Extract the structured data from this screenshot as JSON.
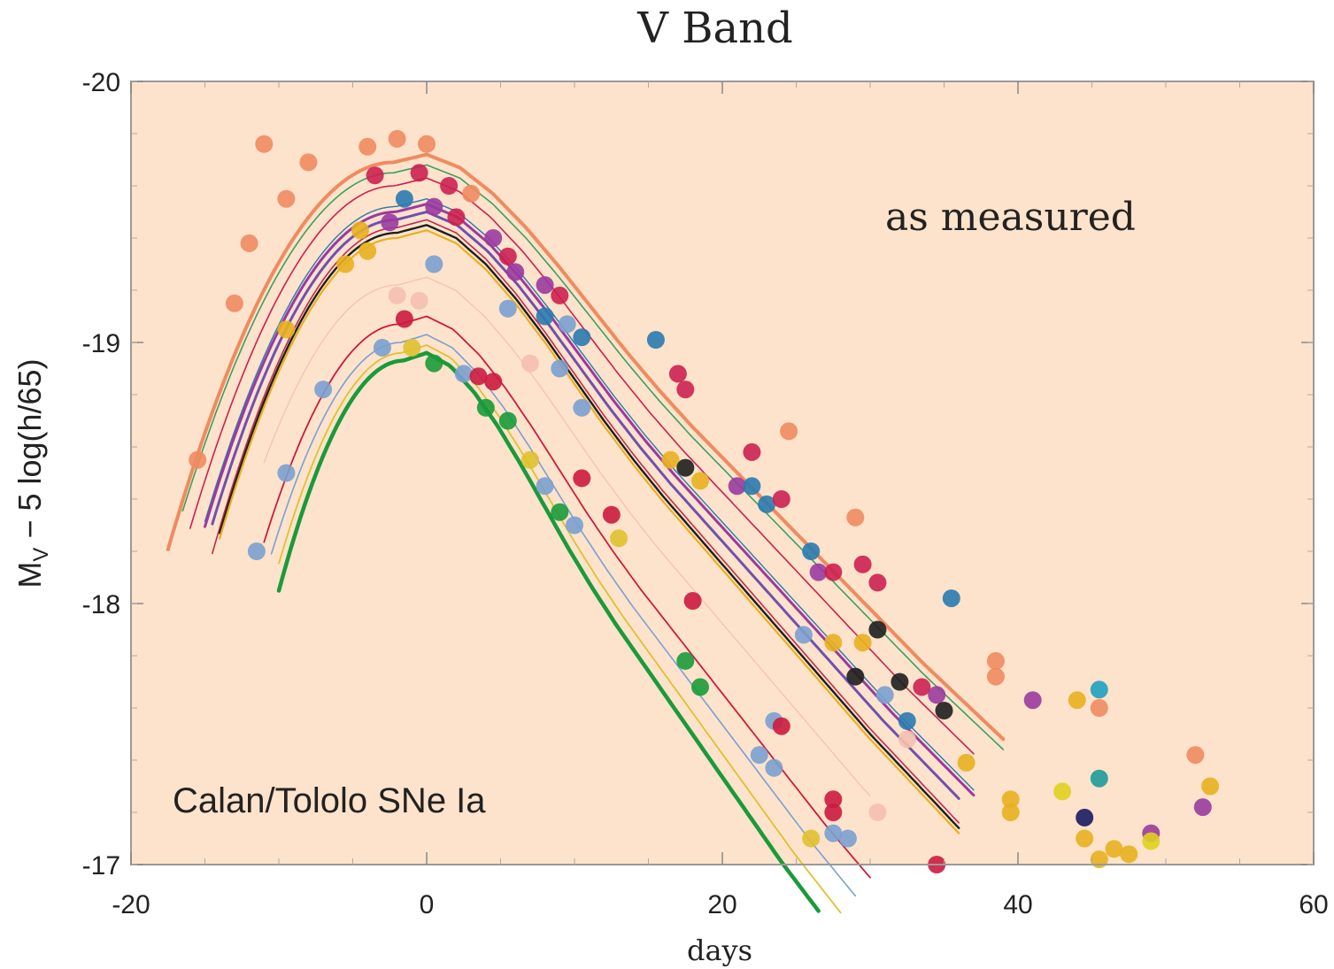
{
  "chart_data": {
    "type": "scatter",
    "title": "V Band",
    "xlabel": "days",
    "ylabel_main": "M",
    "ylabel_sub": "V",
    "ylabel_rest": " − 5 log(h/65)",
    "annotations": {
      "top_right": "as measured",
      "bottom_left": "Calan/Tololo SNe Ia"
    },
    "xlim": [
      -20,
      60
    ],
    "ylim": [
      -17,
      -20
    ],
    "y_inverted": true,
    "x_ticks": [
      -20,
      0,
      20,
      40,
      60
    ],
    "x_tick_labels": [
      "-20",
      "0",
      "20",
      "40",
      "60"
    ],
    "y_ticks": [
      -20,
      -19,
      -18,
      -17
    ],
    "y_tick_labels": [
      "-20",
      "-19",
      "-18",
      "-17"
    ],
    "grid": false,
    "legend": "none",
    "colors": {
      "plot_background": "#fde3cb",
      "frame": "#999999"
    },
    "curve_shape": {
      "x": [
        -2,
        0,
        2,
        4,
        6,
        8,
        10,
        12,
        14,
        16,
        18,
        20,
        22,
        24,
        26,
        28,
        30,
        32,
        34,
        36,
        38,
        40
      ],
      "dm": [
        0.03,
        0.0,
        0.05,
        0.15,
        0.28,
        0.43,
        0.59,
        0.75,
        0.9,
        1.04,
        1.17,
        1.3,
        1.43,
        1.56,
        1.69,
        1.82,
        1.95,
        2.07,
        2.19,
        2.31,
        2.42,
        2.53
      ]
    },
    "series": [
      {
        "peak": -19.72,
        "stretch": 1.12,
        "start": -17.5,
        "end": 39,
        "color": "#f08a60",
        "width": 4
      },
      {
        "peak": -19.68,
        "stretch": 1.12,
        "start": -16.5,
        "end": 39,
        "color": "#3aa060",
        "width": 1.6
      },
      {
        "peak": -19.63,
        "stretch": 1.08,
        "start": -16,
        "end": 37,
        "color": "#cc2050",
        "width": 1.6
      },
      {
        "peak": -19.55,
        "stretch": 1.05,
        "start": -15,
        "end": 37,
        "color": "#2a7ab0",
        "width": 1.4
      },
      {
        "peak": -19.53,
        "stretch": 1.05,
        "start": -15,
        "end": 37,
        "color": "#9a3aa0",
        "width": 3
      },
      {
        "peak": -19.5,
        "stretch": 1.03,
        "start": -14.5,
        "end": 36,
        "color": "#7050b0",
        "width": 3
      },
      {
        "peak": -19.47,
        "stretch": 1.0,
        "start": -14.5,
        "end": 36,
        "color": "#c02a50",
        "width": 1.6
      },
      {
        "peak": -19.45,
        "stretch": 1.0,
        "start": -14,
        "end": 36,
        "color": "#1e1e1e",
        "width": 2.4
      },
      {
        "peak": -19.43,
        "stretch": 1.0,
        "start": -14,
        "end": 36,
        "color": "#e8b020",
        "width": 2.2
      },
      {
        "peak": -19.25,
        "stretch": 0.98,
        "start": -11,
        "end": 30,
        "color": "#f5bfb0",
        "width": 1.2
      },
      {
        "peak": -19.1,
        "stretch": 0.9,
        "start": -11,
        "end": 30,
        "color": "#cc1a40",
        "width": 1.8
      },
      {
        "peak": -19.03,
        "stretch": 0.87,
        "start": -10.5,
        "end": 29,
        "color": "#7aa0d0",
        "width": 1.6
      },
      {
        "peak": -18.99,
        "stretch": 0.83,
        "start": -10,
        "end": 28,
        "color": "#e0c030",
        "width": 1.8
      },
      {
        "peak": -18.96,
        "stretch": 0.8,
        "start": -10,
        "end": 26.5,
        "color": "#1a9a3a",
        "width": 4.5
      }
    ],
    "points": [
      {
        "x": -11,
        "y": -19.76,
        "color": "#f08a60"
      },
      {
        "x": -8,
        "y": -19.69,
        "color": "#f08a60"
      },
      {
        "x": -4,
        "y": -19.75,
        "color": "#f08a60"
      },
      {
        "x": -2,
        "y": -19.78,
        "color": "#f08a60"
      },
      {
        "x": 0,
        "y": -19.76,
        "color": "#f08a60"
      },
      {
        "x": -3.5,
        "y": -19.64,
        "color": "#cc2050"
      },
      {
        "x": -0.5,
        "y": -19.65,
        "color": "#cc2050"
      },
      {
        "x": 1.5,
        "y": -19.6,
        "color": "#cc2050"
      },
      {
        "x": 3,
        "y": -19.57,
        "color": "#f08a60"
      },
      {
        "x": -1.5,
        "y": -19.55,
        "color": "#2a7ab0"
      },
      {
        "x": 0.5,
        "y": -19.52,
        "color": "#9a3aa0"
      },
      {
        "x": 2,
        "y": -19.48,
        "color": "#cc2050"
      },
      {
        "x": -4.5,
        "y": -19.43,
        "color": "#e8b020"
      },
      {
        "x": -2.5,
        "y": -19.46,
        "color": "#9a3aa0"
      },
      {
        "x": 4.5,
        "y": -19.4,
        "color": "#9a3aa0"
      },
      {
        "x": 5.5,
        "y": -19.33,
        "color": "#cc2050"
      },
      {
        "x": -5.5,
        "y": -19.3,
        "color": "#e8b020"
      },
      {
        "x": -4,
        "y": -19.35,
        "color": "#e8b020"
      },
      {
        "x": 0.5,
        "y": -19.3,
        "color": "#7aa0d0"
      },
      {
        "x": 6,
        "y": -19.27,
        "color": "#9a3aa0"
      },
      {
        "x": 8,
        "y": -19.22,
        "color": "#9a3aa0"
      },
      {
        "x": 9,
        "y": -19.18,
        "color": "#cc2050"
      },
      {
        "x": -2,
        "y": -19.18,
        "color": "#f5bfb0"
      },
      {
        "x": -0.5,
        "y": -19.16,
        "color": "#f5bfb0"
      },
      {
        "x": 5.5,
        "y": -19.13,
        "color": "#7aa0d0"
      },
      {
        "x": 8,
        "y": -19.1,
        "color": "#2a7ab0"
      },
      {
        "x": 9.5,
        "y": -19.07,
        "color": "#7aa0d0"
      },
      {
        "x": 10.5,
        "y": -19.02,
        "color": "#2a7ab0"
      },
      {
        "x": -1.5,
        "y": -19.09,
        "color": "#cc1a40"
      },
      {
        "x": -3,
        "y": -18.98,
        "color": "#7aa0d0"
      },
      {
        "x": -1,
        "y": -18.98,
        "color": "#e0c030"
      },
      {
        "x": 0.5,
        "y": -18.92,
        "color": "#1a9a3a"
      },
      {
        "x": 2.5,
        "y": -18.88,
        "color": "#7aa0d0"
      },
      {
        "x": 3.5,
        "y": -18.87,
        "color": "#cc1a40"
      },
      {
        "x": 4.5,
        "y": -18.85,
        "color": "#cc1a40"
      },
      {
        "x": 7,
        "y": -18.92,
        "color": "#f5bfb0"
      },
      {
        "x": 9,
        "y": -18.9,
        "color": "#7aa0d0"
      },
      {
        "x": 10.5,
        "y": -18.75,
        "color": "#7aa0d0"
      },
      {
        "x": 15.5,
        "y": -19.01,
        "color": "#2a7ab0"
      },
      {
        "x": 17,
        "y": -18.88,
        "color": "#cc2050"
      },
      {
        "x": 17.5,
        "y": -18.82,
        "color": "#cc2050"
      },
      {
        "x": -7,
        "y": -18.82,
        "color": "#7aa0d0"
      },
      {
        "x": 4,
        "y": -18.75,
        "color": "#1a9a3a"
      },
      {
        "x": 5.5,
        "y": -18.7,
        "color": "#1a9a3a"
      },
      {
        "x": 7,
        "y": -18.55,
        "color": "#e0c030"
      },
      {
        "x": 8,
        "y": -18.45,
        "color": "#7aa0d0"
      },
      {
        "x": 9,
        "y": -18.35,
        "color": "#1a9a3a"
      },
      {
        "x": 10,
        "y": -18.3,
        "color": "#7aa0d0"
      },
      {
        "x": 10.5,
        "y": -18.48,
        "color": "#cc1a40"
      },
      {
        "x": 12.5,
        "y": -18.34,
        "color": "#cc1a40"
      },
      {
        "x": 13,
        "y": -18.25,
        "color": "#e0c030"
      },
      {
        "x": 16.5,
        "y": -18.55,
        "color": "#e8b020"
      },
      {
        "x": 17.5,
        "y": -18.52,
        "color": "#1e1e1e"
      },
      {
        "x": 18.5,
        "y": -18.47,
        "color": "#e8b020"
      },
      {
        "x": 22,
        "y": -18.58,
        "color": "#cc2050"
      },
      {
        "x": 21,
        "y": -18.45,
        "color": "#9a3aa0"
      },
      {
        "x": 22,
        "y": -18.45,
        "color": "#2a7ab0"
      },
      {
        "x": 23,
        "y": -18.38,
        "color": "#2a7ab0"
      },
      {
        "x": 24,
        "y": -18.4,
        "color": "#cc2050"
      },
      {
        "x": 24.5,
        "y": -18.66,
        "color": "#f08a60"
      },
      {
        "x": 26,
        "y": -18.2,
        "color": "#2a7ab0"
      },
      {
        "x": 26.5,
        "y": -18.12,
        "color": "#9a3aa0"
      },
      {
        "x": 27.5,
        "y": -18.12,
        "color": "#cc2050"
      },
      {
        "x": 29,
        "y": -18.33,
        "color": "#f08a60"
      },
      {
        "x": 29.5,
        "y": -18.15,
        "color": "#cc2050"
      },
      {
        "x": 30.5,
        "y": -18.08,
        "color": "#cc2050"
      },
      {
        "x": 18,
        "y": -18.01,
        "color": "#cc1a40"
      },
      {
        "x": 17.5,
        "y": -17.78,
        "color": "#1a9a3a"
      },
      {
        "x": 18.5,
        "y": -17.68,
        "color": "#1a9a3a"
      },
      {
        "x": 25.5,
        "y": -17.88,
        "color": "#7aa0d0"
      },
      {
        "x": 27.5,
        "y": -17.85,
        "color": "#e8b020"
      },
      {
        "x": 29.5,
        "y": -17.85,
        "color": "#e8b020"
      },
      {
        "x": 30.5,
        "y": -17.9,
        "color": "#1e1e1e"
      },
      {
        "x": 29,
        "y": -17.72,
        "color": "#1e1e1e"
      },
      {
        "x": 32,
        "y": -17.7,
        "color": "#1e1e1e"
      },
      {
        "x": 33.5,
        "y": -17.68,
        "color": "#cc2050"
      },
      {
        "x": 34.5,
        "y": -17.65,
        "color": "#9a3aa0"
      },
      {
        "x": 31,
        "y": -17.65,
        "color": "#7aa0d0"
      },
      {
        "x": 32.5,
        "y": -17.55,
        "color": "#2a7ab0"
      },
      {
        "x": 35,
        "y": -17.59,
        "color": "#1e1e1e"
      },
      {
        "x": 35.5,
        "y": -18.02,
        "color": "#2a7ab0"
      },
      {
        "x": 38.5,
        "y": -17.78,
        "color": "#f08a60"
      },
      {
        "x": 38.5,
        "y": -17.72,
        "color": "#f08a60"
      },
      {
        "x": 23.5,
        "y": -17.55,
        "color": "#7aa0d0"
      },
      {
        "x": 24,
        "y": -17.53,
        "color": "#cc1a40"
      },
      {
        "x": 22.5,
        "y": -17.42,
        "color": "#7aa0d0"
      },
      {
        "x": 23.5,
        "y": -17.37,
        "color": "#7aa0d0"
      },
      {
        "x": 27.5,
        "y": -17.25,
        "color": "#cc1a40"
      },
      {
        "x": 27.5,
        "y": -17.2,
        "color": "#cc1a40"
      },
      {
        "x": 26,
        "y": -17.1,
        "color": "#e0c030"
      },
      {
        "x": 27.5,
        "y": -17.12,
        "color": "#7aa0d0"
      },
      {
        "x": 28.5,
        "y": -17.1,
        "color": "#7aa0d0"
      },
      {
        "x": 30.5,
        "y": -17.2,
        "color": "#f5bfb0"
      },
      {
        "x": 32.5,
        "y": -17.48,
        "color": "#f5bfb0"
      },
      {
        "x": 34.5,
        "y": -17.0,
        "color": "#cc1a40"
      },
      {
        "x": 36.5,
        "y": -17.39,
        "color": "#e8b020"
      },
      {
        "x": 39.5,
        "y": -17.25,
        "color": "#e8b020"
      },
      {
        "x": 39.5,
        "y": -17.2,
        "color": "#e8b020"
      },
      {
        "x": 41,
        "y": -17.63,
        "color": "#9a3aa0"
      },
      {
        "x": 44,
        "y": -17.63,
        "color": "#e8b020"
      },
      {
        "x": 45.5,
        "y": -17.67,
        "color": "#1ea0c0"
      },
      {
        "x": 45.5,
        "y": -17.6,
        "color": "#f08a60"
      },
      {
        "x": 45.5,
        "y": -17.33,
        "color": "#1e9a9a"
      },
      {
        "x": 43,
        "y": -17.28,
        "color": "#e0d020"
      },
      {
        "x": 44.5,
        "y": -17.18,
        "color": "#1a1a60"
      },
      {
        "x": 44.5,
        "y": -17.1,
        "color": "#e8b020"
      },
      {
        "x": 45.5,
        "y": -17.02,
        "color": "#e8b020"
      },
      {
        "x": 46.5,
        "y": -17.06,
        "color": "#e8b020"
      },
      {
        "x": 47.5,
        "y": -17.04,
        "color": "#e8b020"
      },
      {
        "x": 49,
        "y": -17.12,
        "color": "#9a3aa0"
      },
      {
        "x": 49,
        "y": -17.09,
        "color": "#e0d020"
      },
      {
        "x": 52,
        "y": -17.42,
        "color": "#f08a60"
      },
      {
        "x": 52.5,
        "y": -17.22,
        "color": "#9a3aa0"
      },
      {
        "x": 53,
        "y": -17.3,
        "color": "#e8b020"
      },
      {
        "x": -11.5,
        "y": -18.2,
        "color": "#7aa0d0"
      },
      {
        "x": -9.5,
        "y": -18.5,
        "color": "#7aa0d0"
      },
      {
        "x": -15.5,
        "y": -18.55,
        "color": "#f08a60"
      },
      {
        "x": -13,
        "y": -19.15,
        "color": "#f08a60"
      },
      {
        "x": -12,
        "y": -19.38,
        "color": "#f08a60"
      },
      {
        "x": -9.5,
        "y": -19.55,
        "color": "#f08a60"
      },
      {
        "x": -9.5,
        "y": -19.05,
        "color": "#e8b020"
      }
    ]
  }
}
